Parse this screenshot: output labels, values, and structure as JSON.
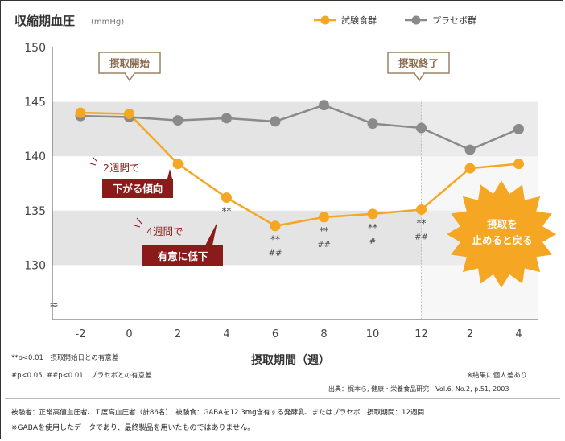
{
  "chart_data": {
    "type": "line",
    "title": "収縮期血圧",
    "unit": "(mmHg)",
    "xlabel": "摂取期間（週）",
    "x_ticks": [
      "-2",
      "0",
      "2",
      "4",
      "6",
      "8",
      "10",
      "12",
      "2",
      "4"
    ],
    "ylim": [
      125,
      150
    ],
    "y_ticks": [
      130,
      135,
      140,
      145,
      150
    ],
    "legend_position": "top-right",
    "series": [
      {
        "name": "試験食群",
        "color": "#f5a623",
        "values": [
          144.0,
          143.9,
          139.3,
          136.2,
          133.6,
          134.4,
          134.7,
          135.1,
          138.9,
          139.3
        ]
      },
      {
        "name": "プラセボ群",
        "color": "#8a8a8a",
        "values": [
          143.7,
          143.6,
          143.3,
          143.5,
          143.2,
          144.7,
          143.0,
          142.6,
          140.6,
          142.5
        ]
      }
    ],
    "significance": [
      {
        "x_index": 3,
        "p01": "**",
        "placebo": ""
      },
      {
        "x_index": 4,
        "p01": "**",
        "placebo": "##"
      },
      {
        "x_index": 5,
        "p01": "**",
        "placebo": "##"
      },
      {
        "x_index": 6,
        "p01": "**",
        "placebo": "#"
      },
      {
        "x_index": 7,
        "p01": "**",
        "placebo": "##"
      }
    ],
    "annotations": {
      "start": "摂取開始",
      "end": "摂取終了",
      "callout1_line1": "2週間で",
      "callout1_line2": "下がる傾向",
      "callout2_line1": "4週間で",
      "callout2_line2": "有意に低下",
      "burst_line1": "摂取を",
      "burst_line2": "止めると戻る"
    },
    "colors": {
      "band": "#e4e4e4",
      "after_region": "#f0f0f0",
      "callout_bg": "#8b1a1a",
      "burst": "#f5a623",
      "label_border": "#9b8265",
      "label_text": "#8a6d50"
    }
  },
  "footnotes": {
    "sig1": "**p<0.01　摂取開始日との有意差",
    "sig2": "#p<0.05, ##p<0.01　プラセボとの有意差",
    "individual": "※結果に個人差あり",
    "source": "出典：梶本ら, 健康・栄養食品研究　Vol.6, No.2, p.51, 2003",
    "subjects": "被験者：正常高値血圧者、Ｉ度高血圧者（計86名）　被験食：GABAを12.3mg含有する発酵乳、またはプラセボ　摂取期間：12週間",
    "disclaimer": "※GABAを使用したデータであり、最終製品を用いたものではありません。"
  }
}
